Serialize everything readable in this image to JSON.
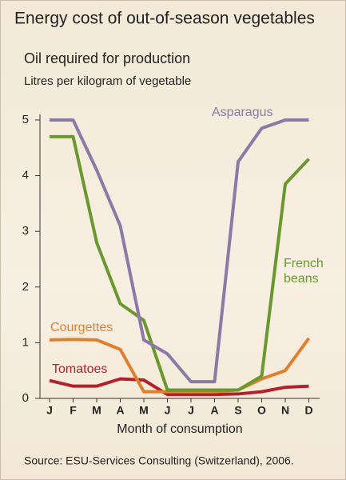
{
  "chart_data": {
    "type": "line",
    "title": "Energy cost of out-of-season vegetables",
    "subtitle": "Oil required for production",
    "ylabel": "Litres per kilogram of vegetable",
    "xlabel": "Month of consumption",
    "source": "Source: ESU-Services Consulting (Switzerland), 2006.",
    "categories": [
      "J",
      "F",
      "M",
      "A",
      "M",
      "J",
      "J",
      "A",
      "S",
      "O",
      "N",
      "D"
    ],
    "series": [
      {
        "name": "Asparagus",
        "color": "#8e78a6",
        "values": [
          5,
          5,
          4.1,
          3.1,
          1.05,
          0.8,
          0.3,
          0.3,
          4.25,
          4.85,
          5,
          5
        ]
      },
      {
        "name": "French beans",
        "color": "#69992e",
        "values": [
          4.7,
          4.7,
          2.8,
          1.7,
          1.4,
          0.15,
          0.15,
          0.15,
          0.15,
          0.4,
          3.85,
          4.3
        ]
      },
      {
        "name": "Courgettes",
        "color": "#e0802f",
        "values": [
          1.05,
          1.06,
          1.05,
          0.88,
          0.12,
          0.12,
          0.12,
          0.12,
          0.15,
          0.35,
          0.5,
          1.08
        ]
      },
      {
        "name": "Tomatoes",
        "color": "#b3212b",
        "values": [
          0.32,
          0.22,
          0.22,
          0.35,
          0.33,
          0.07,
          0.07,
          0.07,
          0.08,
          0.12,
          0.2,
          0.22
        ]
      }
    ],
    "ylim": [
      0,
      5.1
    ],
    "yticks": [
      0,
      1,
      2,
      3,
      4,
      5
    ]
  }
}
